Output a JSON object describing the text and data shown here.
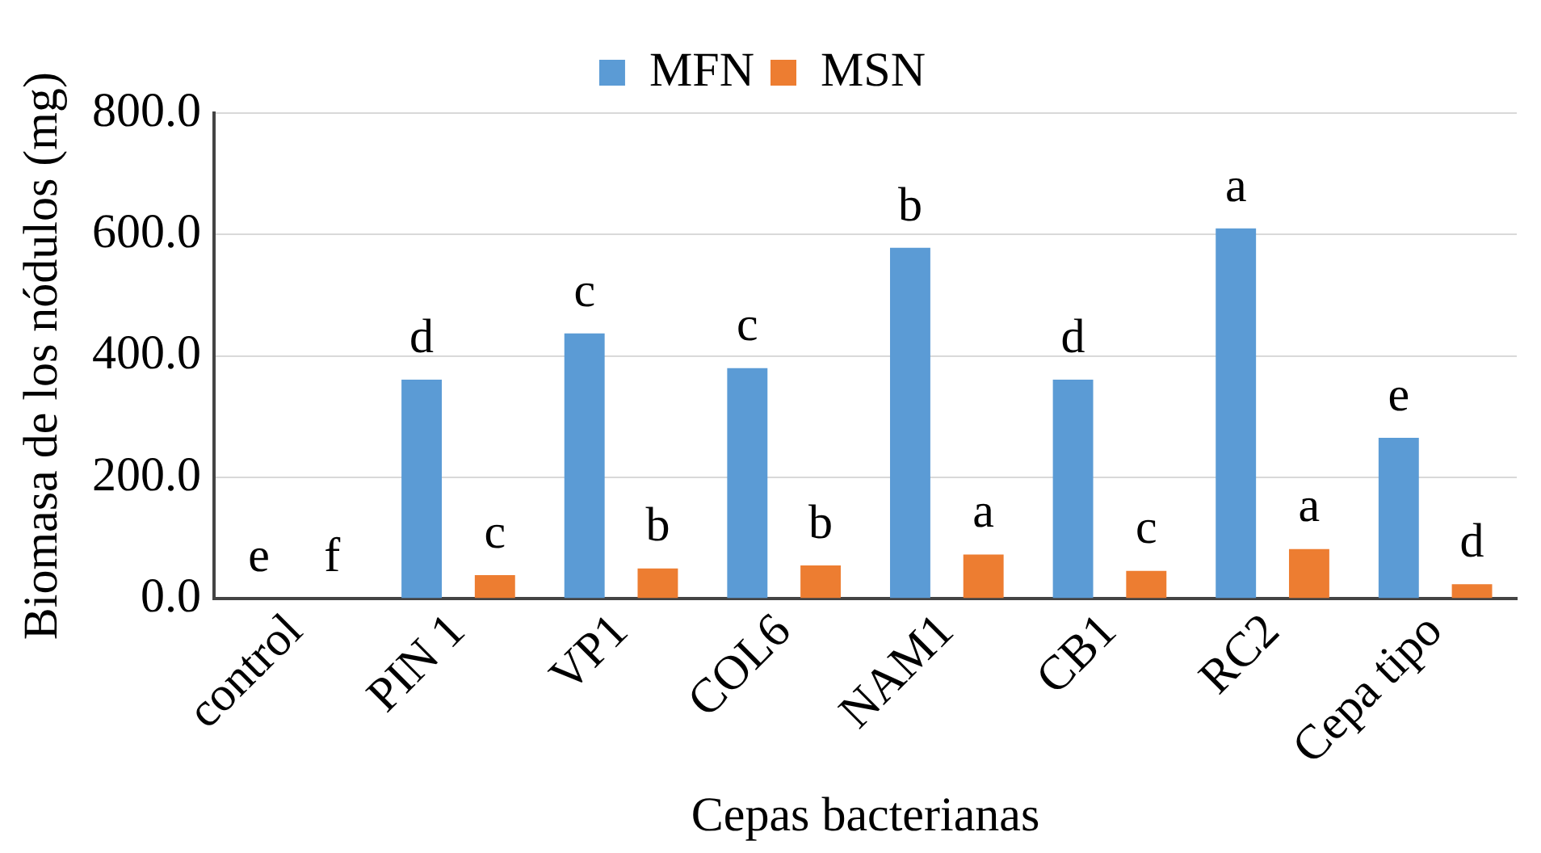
{
  "chart_data": {
    "type": "bar",
    "xlabel": "Cepas bacterianas",
    "ylabel": "Biomasa de los nódulos (mg)",
    "categories": [
      "control",
      "PIN 1",
      "VP1",
      "COL6",
      "NAM1",
      "CB1",
      "RC2",
      "Cepa tipo"
    ],
    "series": [
      {
        "name": "MFN",
        "color": "#5b9bd5",
        "values": [
          0,
          361,
          437,
          380,
          578,
          361,
          610,
          265
        ],
        "value_labels": [
          "e",
          "d",
          "c",
          "c",
          "b",
          "d",
          "a",
          "e"
        ]
      },
      {
        "name": "MSN",
        "color": "#ed7d31",
        "values": [
          0,
          39,
          50,
          55,
          73,
          46,
          82,
          24
        ],
        "value_labels": [
          "f",
          "c",
          "b",
          "b",
          "a",
          "c",
          "a",
          "d"
        ]
      }
    ],
    "ylim": [
      0,
      800
    ],
    "yticks": [
      {
        "value": 0,
        "label": "0.0"
      },
      {
        "value": 200,
        "label": "200.0"
      },
      {
        "value": 400,
        "label": "400.0"
      },
      {
        "value": 600,
        "label": "600.0"
      },
      {
        "value": 800,
        "label": "800.0"
      }
    ],
    "grid": "y",
    "legend": "top"
  }
}
